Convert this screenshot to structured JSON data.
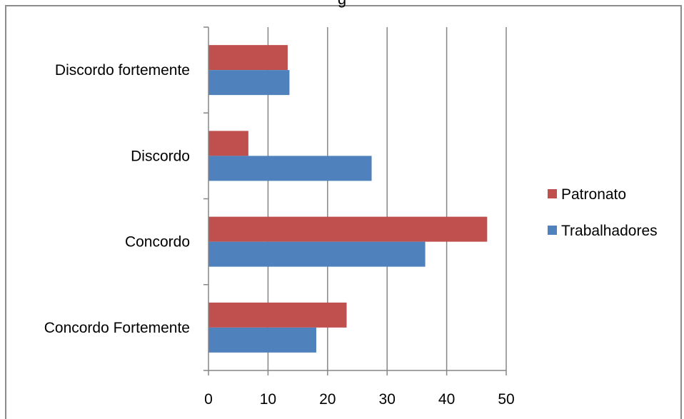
{
  "chart_data": {
    "type": "bar",
    "orientation": "horizontal",
    "title_fragment": "g",
    "categories": [
      "Concordo Fortemente",
      "Concordo",
      "Discordo",
      "Discordo fortemente"
    ],
    "series": [
      {
        "name": "Trabalhadores",
        "color": "#4f81bd",
        "values": [
          18.1,
          36.4,
          27.4,
          13.6
        ]
      },
      {
        "name": "Patronato",
        "color": "#c0504d",
        "values": [
          23.2,
          46.8,
          6.7,
          13.3
        ]
      }
    ],
    "xlim": [
      0,
      50
    ],
    "xticks": [
      "0",
      "10",
      "20",
      "30",
      "40",
      "50"
    ],
    "grid": true,
    "legend_position": "right"
  }
}
